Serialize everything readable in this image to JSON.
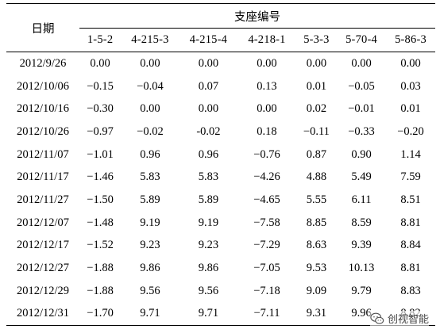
{
  "table": {
    "date_header": "日期",
    "group_header": "支座编号",
    "columns": [
      "1-5-2",
      "4-215-3",
      "4-215-4",
      "4-218-1",
      "5-3-3",
      "5-70-4",
      "5-86-3"
    ],
    "rows": [
      {
        "date": "2012/9/26",
        "values": [
          "0.00",
          "0.00",
          "0.00",
          "0.00",
          "0.00",
          "0.00",
          "0.00"
        ]
      },
      {
        "date": "2012/10/06",
        "values": [
          "−0.15",
          "−0.04",
          "0.07",
          "0.13",
          "0.01",
          "−0.05",
          "0.03"
        ]
      },
      {
        "date": "2012/10/16",
        "values": [
          "−0.30",
          "0.00",
          "0.00",
          "0.00",
          "0.02",
          "−0.01",
          "0.01"
        ]
      },
      {
        "date": "2012/10/26",
        "values": [
          "−0.97",
          "−0.02",
          "-0.02",
          "0.18",
          "−0.11",
          "−0.33",
          "−0.20"
        ]
      },
      {
        "date": "2012/11/07",
        "values": [
          "−1.01",
          "0.96",
          "0.96",
          "−0.76",
          "0.87",
          "0.90",
          "1.14"
        ]
      },
      {
        "date": "2012/11/17",
        "values": [
          "−1.46",
          "5.83",
          "5.83",
          "−4.26",
          "4.88",
          "5.49",
          "7.59"
        ]
      },
      {
        "date": "2012/11/27",
        "values": [
          "−1.50",
          "5.89",
          "5.89",
          "−4.65",
          "5.55",
          "6.11",
          "8.51"
        ]
      },
      {
        "date": "2012/12/07",
        "values": [
          "−1.48",
          "9.19",
          "9.19",
          "−7.58",
          "8.85",
          "8.59",
          "8.81"
        ]
      },
      {
        "date": "2012/12/17",
        "values": [
          "−1.52",
          "9.23",
          "9.23",
          "−7.29",
          "8.63",
          "9.39",
          "8.84"
        ]
      },
      {
        "date": "2012/12/27",
        "values": [
          "−1.88",
          "9.86",
          "9.86",
          "−7.05",
          "9.53",
          "10.13",
          "8.81"
        ]
      },
      {
        "date": "2012/12/29",
        "values": [
          "−1.88",
          "9.56",
          "9.56",
          "−7.18",
          "9.09",
          "9.79",
          "8.83"
        ]
      },
      {
        "date": "2012/12/31",
        "values": [
          "−1.70",
          "9.71",
          "9.71",
          "−7.11",
          "9.31",
          "9.96",
          "8.82"
        ]
      }
    ]
  },
  "watermark": {
    "text": "创视智能",
    "icon": "wechat-logo-icon"
  }
}
